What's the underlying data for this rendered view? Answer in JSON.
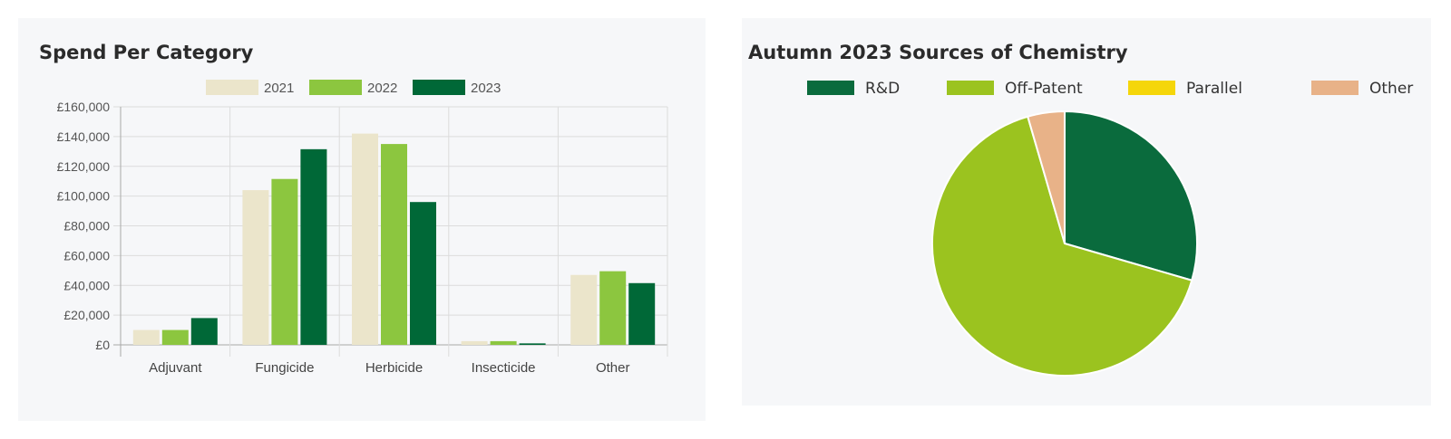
{
  "charts": {
    "left_title": "Spend Per Category",
    "right_title": "Autumn 2023 Sources of Chemistry"
  },
  "chart_data": [
    {
      "type": "bar",
      "title": "Spend Per Category",
      "categories": [
        "Adjuvant",
        "Fungicide",
        "Herbicide",
        "Insecticide",
        "Other"
      ],
      "series": [
        {
          "name": "2021",
          "color": "#ebe5cb",
          "values": [
            10000,
            104000,
            142000,
            2500,
            47000
          ]
        },
        {
          "name": "2022",
          "color": "#8cc63f",
          "values": [
            10000,
            111500,
            135000,
            2500,
            49500
          ]
        },
        {
          "name": "2023",
          "color": "#006837",
          "values": [
            18000,
            131500,
            96000,
            1000,
            41500
          ]
        }
      ],
      "yticks": [
        "£0",
        "£20,000",
        "£40,000",
        "£60,000",
        "£80,000",
        "£100,000",
        "£120,000",
        "£140,000",
        "£160,000"
      ],
      "ylim": [
        0,
        160000
      ],
      "legend_position": "top",
      "grid": true
    },
    {
      "type": "pie",
      "title": "Autumn 2023 Sources of Chemistry",
      "labels": [
        "R&D",
        "Off-Patent",
        "Parallel",
        "Other"
      ],
      "values": [
        29.5,
        66,
        0,
        4.5
      ],
      "colors": [
        "#0a6b3d",
        "#9bc31f",
        "#f5d60a",
        "#e8b288"
      ],
      "legend_position": "top"
    }
  ]
}
